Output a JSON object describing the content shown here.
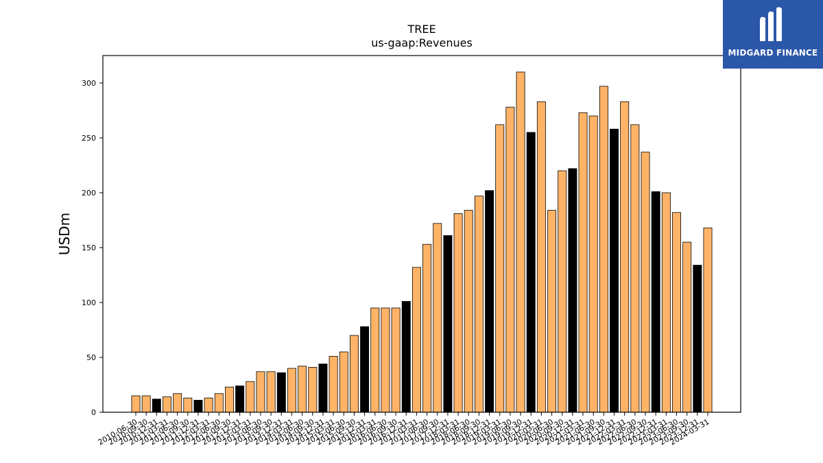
{
  "logo": {
    "text": "MIDGARD FINANCE"
  },
  "chart_data": {
    "type": "bar",
    "title": "TREE",
    "subtitle": "us-gaap:Revenues",
    "ylabel": "USDm",
    "xlabel": "",
    "ylim": [
      0,
      325
    ],
    "yticks": [
      0,
      50,
      100,
      150,
      200,
      250,
      300
    ],
    "grid": false,
    "colors": {
      "quarter": "#ffb366",
      "annual": "#000000",
      "edge": "#000000"
    },
    "categories": [
      "2010-06-30",
      "2010-09-30",
      "2010-12-31",
      "2011-03-31",
      "2011-06-30",
      "2011-09-30",
      "2011-12-31",
      "2012-03-31",
      "2012-06-30",
      "2012-09-30",
      "2012-12-31",
      "2013-03-31",
      "2013-06-30",
      "2013-09-30",
      "2013-12-31",
      "2014-03-31",
      "2014-06-30",
      "2014-09-30",
      "2014-12-31",
      "2015-03-31",
      "2015-06-30",
      "2015-09-30",
      "2015-12-31",
      "2016-03-31",
      "2016-06-30",
      "2016-09-30",
      "2016-12-31",
      "2017-03-31",
      "2017-06-30",
      "2017-09-30",
      "2017-12-31",
      "2018-03-31",
      "2018-06-30",
      "2018-09-30",
      "2018-12-31",
      "2019-03-31",
      "2019-06-30",
      "2019-09-30",
      "2019-12-31",
      "2020-03-31",
      "2020-06-30",
      "2020-09-30",
      "2020-12-31",
      "2021-03-31",
      "2021-06-30",
      "2021-09-30",
      "2021-12-31",
      "2022-03-31",
      "2022-06-30",
      "2022-09-30",
      "2022-12-31",
      "2023-03-31",
      "2023-06-30",
      "2023-09-30",
      "2023-12-31",
      "2024-03-31"
    ],
    "values": [
      15,
      15,
      12,
      14,
      17,
      13,
      11,
      13,
      17,
      23,
      24,
      28,
      37,
      37,
      36,
      40,
      42,
      41,
      44,
      51,
      55,
      70,
      78,
      95,
      95,
      95,
      101,
      132,
      153,
      172,
      161,
      181,
      184,
      197,
      202,
      262,
      278,
      310,
      255,
      283,
      184,
      220,
      222,
      273,
      270,
      297,
      258,
      283,
      262,
      237,
      201,
      200,
      182,
      155,
      134,
      168
    ],
    "annual_flags": [
      0,
      0,
      1,
      0,
      0,
      0,
      1,
      0,
      0,
      0,
      1,
      0,
      0,
      0,
      1,
      0,
      0,
      0,
      1,
      0,
      0,
      0,
      1,
      0,
      0,
      0,
      1,
      0,
      0,
      0,
      1,
      0,
      0,
      0,
      1,
      0,
      0,
      0,
      1,
      0,
      0,
      0,
      1,
      0,
      0,
      0,
      1,
      0,
      0,
      0,
      1,
      0,
      0,
      0,
      1,
      0
    ]
  }
}
